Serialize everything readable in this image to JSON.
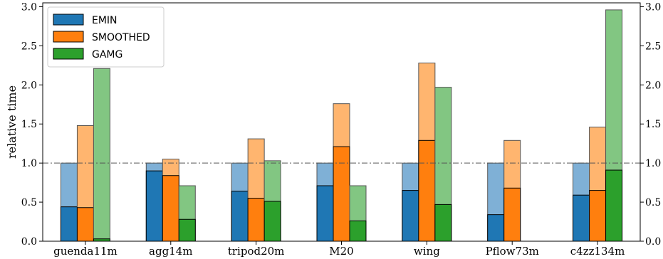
{
  "chart_data": {
    "type": "bar",
    "stacked_overlay": true,
    "categories": [
      "guenda11m",
      "agg14m",
      "tripod20m",
      "M20",
      "wing",
      "Pflow73m",
      "c4zz134m"
    ],
    "series": [
      {
        "name": "EMIN",
        "color": "#1f77b4",
        "light_color": "#7fb0d6",
        "values": [
          0.44,
          0.9,
          0.64,
          0.71,
          0.65,
          0.34,
          0.59
        ],
        "totals": [
          1.0,
          1.0,
          1.0,
          1.0,
          1.0,
          1.0,
          1.0
        ]
      },
      {
        "name": "SMOOTHED",
        "color": "#ff7f0e",
        "light_color": "#ffb56f",
        "values": [
          0.43,
          0.84,
          0.55,
          1.21,
          1.29,
          0.68,
          0.65
        ],
        "totals": [
          1.48,
          1.05,
          1.31,
          1.76,
          2.28,
          1.29,
          1.46
        ]
      },
      {
        "name": "GAMG",
        "color": "#2ca02c",
        "light_color": "#82c682",
        "values": [
          0.03,
          0.28,
          0.51,
          0.26,
          0.47,
          null,
          0.91
        ],
        "totals": [
          2.21,
          0.71,
          1.03,
          0.71,
          1.97,
          null,
          2.96
        ]
      }
    ],
    "ylabel": "relative time",
    "xlabel": "",
    "ylim": [
      0.0,
      3.05
    ],
    "yticks": [
      "0.0",
      "0.5",
      "1.0",
      "1.5",
      "2.0",
      "2.5",
      "3.0"
    ],
    "ytick_values": [
      0.0,
      0.5,
      1.0,
      1.5,
      2.0,
      2.5,
      3.0
    ],
    "reference_line": 1.0,
    "secondary_y_axis": true,
    "grid": false,
    "legend": {
      "placement": "top-left"
    }
  }
}
